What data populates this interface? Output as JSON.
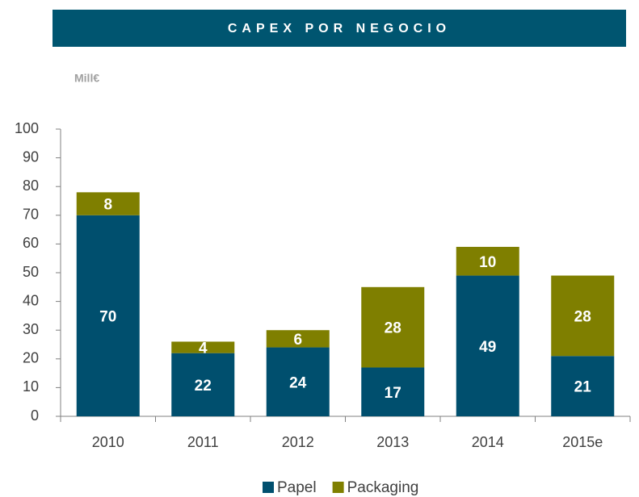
{
  "chart_data": {
    "type": "stacked_bar",
    "title": "CAPEX POR NEGOCIO",
    "unit_label": "Mill€",
    "categories": [
      "2010",
      "2011",
      "2012",
      "2013",
      "2014",
      "2015e"
    ],
    "series": [
      {
        "name": "Papel",
        "color": "#004f6e",
        "values": [
          70,
          22,
          24,
          17,
          49,
          21
        ]
      },
      {
        "name": "Packaging",
        "color": "#7f7f00",
        "values": [
          8,
          4,
          6,
          28,
          10,
          28
        ]
      }
    ],
    "ylim": [
      0,
      100
    ],
    "yticks": [
      0,
      10,
      20,
      30,
      40,
      50,
      60,
      70,
      80,
      90,
      100
    ],
    "legend": "bottom"
  }
}
